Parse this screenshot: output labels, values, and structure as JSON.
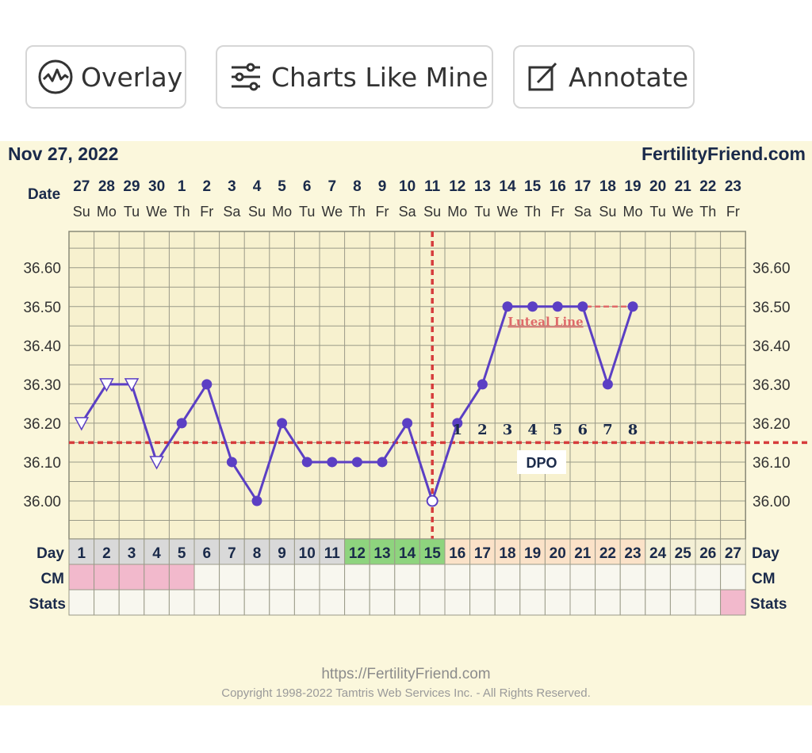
{
  "toolbar": {
    "buttons": [
      {
        "label": "Overlay",
        "icon": "overlay-chart-icon"
      },
      {
        "label": "Charts Like Mine",
        "icon": "sliders-icon"
      },
      {
        "label": "Annotate",
        "icon": "edit-note-icon"
      }
    ]
  },
  "chart_header": {
    "date_text": "Nov 27, 2022",
    "brand": "FertilityFriend.com"
  },
  "footer": {
    "url": "https://FertilityFriend.com",
    "copyright": "Copyright 1998-2022 Tamtris Web Services Inc. - All Rights Reserved."
  },
  "colors": {
    "panel_bg": "#fbf7dc",
    "grid": "#9a9a88",
    "temp_line": "#5b3fc4",
    "coverline": "#d63c3c",
    "luteal": "#e06a6a",
    "fertile_green": "#8ed47e",
    "luteal_peach": "#fbe2c8",
    "cm_pink": "#f2b9cc",
    "header_grey": "#d9d9d9"
  },
  "chart_data": {
    "type": "line",
    "title": "",
    "row_labels": {
      "date": "Date",
      "day": "Day",
      "cm": "CM",
      "stats": "Stats"
    },
    "dates": [
      "27",
      "28",
      "29",
      "30",
      "1",
      "2",
      "3",
      "4",
      "5",
      "6",
      "7",
      "8",
      "9",
      "10",
      "11",
      "12",
      "13",
      "14",
      "15",
      "16",
      "17",
      "18",
      "19",
      "20",
      "21",
      "22",
      "23"
    ],
    "weekdays": [
      "Su",
      "Mo",
      "Tu",
      "We",
      "Th",
      "Fr",
      "Sa",
      "Su",
      "Mo",
      "Tu",
      "We",
      "Th",
      "Fr",
      "Sa",
      "Su",
      "Mo",
      "Tu",
      "We",
      "Th",
      "Fr",
      "Sa",
      "Su",
      "Mo",
      "Tu",
      "We",
      "Th",
      "Fr"
    ],
    "cycle_days": [
      "1",
      "2",
      "3",
      "4",
      "5",
      "6",
      "7",
      "8",
      "9",
      "10",
      "11",
      "12",
      "13",
      "14",
      "15",
      "16",
      "17",
      "18",
      "19",
      "20",
      "21",
      "22",
      "23",
      "24",
      "25",
      "26",
      "27"
    ],
    "ylim": [
      35.89,
      36.69
    ],
    "yticks": [
      "36.00",
      "36.10",
      "36.20",
      "36.30",
      "36.40",
      "36.50",
      "36.60"
    ],
    "series": [
      {
        "values": [
          36.2,
          36.3,
          36.3,
          36.1,
          36.2,
          36.3,
          36.1,
          36.0,
          36.2,
          36.1,
          36.1,
          36.1,
          36.1,
          36.2,
          36.0,
          36.2,
          36.3,
          36.5,
          36.5,
          36.5,
          36.5,
          36.3,
          36.5,
          null,
          null,
          null,
          null
        ],
        "markers": [
          "open-triangle",
          "open-triangle",
          "open-triangle",
          "open-triangle",
          "dot",
          "dot",
          "dot",
          "dot",
          "dot",
          "dot",
          "dot",
          "dot",
          "dot",
          "dot",
          "open-circle",
          "dot",
          "dot",
          "dot",
          "dot",
          "dot",
          "dot",
          "dot",
          "dot",
          null,
          null,
          null,
          null
        ]
      }
    ],
    "coverline": 36.15,
    "ovulation_day": 15,
    "luteal_line": {
      "label": "Luteal Line",
      "value": 36.5,
      "from_day": 18,
      "to_day": 23
    },
    "dpo": {
      "label": "DPO",
      "numbers": [
        "1",
        "2",
        "3",
        "4",
        "5",
        "6",
        "7",
        "8"
      ],
      "start_day": 16
    },
    "fertile_days": [
      12,
      13,
      14,
      15
    ],
    "luteal_days": [
      16,
      17,
      18,
      19,
      20,
      21,
      22,
      23
    ],
    "cm_marked_days": [
      1,
      2,
      3,
      4,
      5
    ],
    "stats_marked_days": [
      27
    ],
    "grid": true
  }
}
